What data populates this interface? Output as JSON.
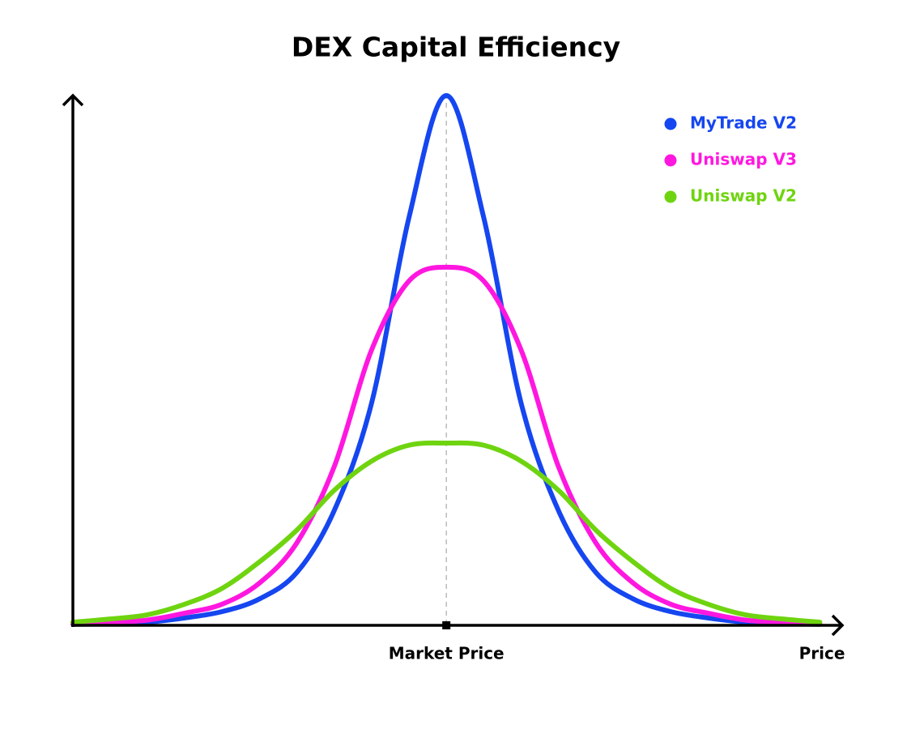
{
  "chart_data": {
    "type": "line",
    "title": "DEX Capital Efficiency",
    "x_label": "Price",
    "x": [
      0,
      5,
      10,
      15,
      20,
      25,
      30,
      35,
      40,
      45,
      50,
      55,
      60,
      65,
      70,
      75,
      80,
      85,
      90,
      95,
      100
    ],
    "series": [
      {
        "name": "MyTrade V2",
        "color": "#1546f0",
        "values": [
          0.2,
          0.3,
          0.6,
          1.4,
          2.6,
          5,
          10,
          21.7,
          42,
          77,
          100,
          77,
          42,
          21.7,
          10,
          5,
          2.6,
          1.4,
          0.6,
          0.3,
          0.2
        ]
      },
      {
        "name": "Uniswap V3",
        "color": "#ff17e0",
        "values": [
          0.3,
          0.6,
          1,
          2.3,
          4,
          8,
          15.6,
          30,
          52,
          65,
          67.6,
          65,
          52,
          30,
          15.6,
          8,
          4,
          2.3,
          1,
          0.6,
          0.3
        ]
      },
      {
        "name": "Uniswap V2",
        "color": "#6fd410",
        "values": [
          0.6,
          1.2,
          2,
          4,
          7,
          12,
          18,
          25.5,
          31,
          34,
          34.4,
          34,
          31,
          25.5,
          18,
          12,
          7,
          4,
          2,
          1.2,
          0.6
        ]
      }
    ],
    "annotation": {
      "label": "Market Price",
      "x": 50
    },
    "xlim": [
      0,
      103
    ],
    "ylim": [
      0,
      100
    ],
    "legend": "top-right"
  }
}
